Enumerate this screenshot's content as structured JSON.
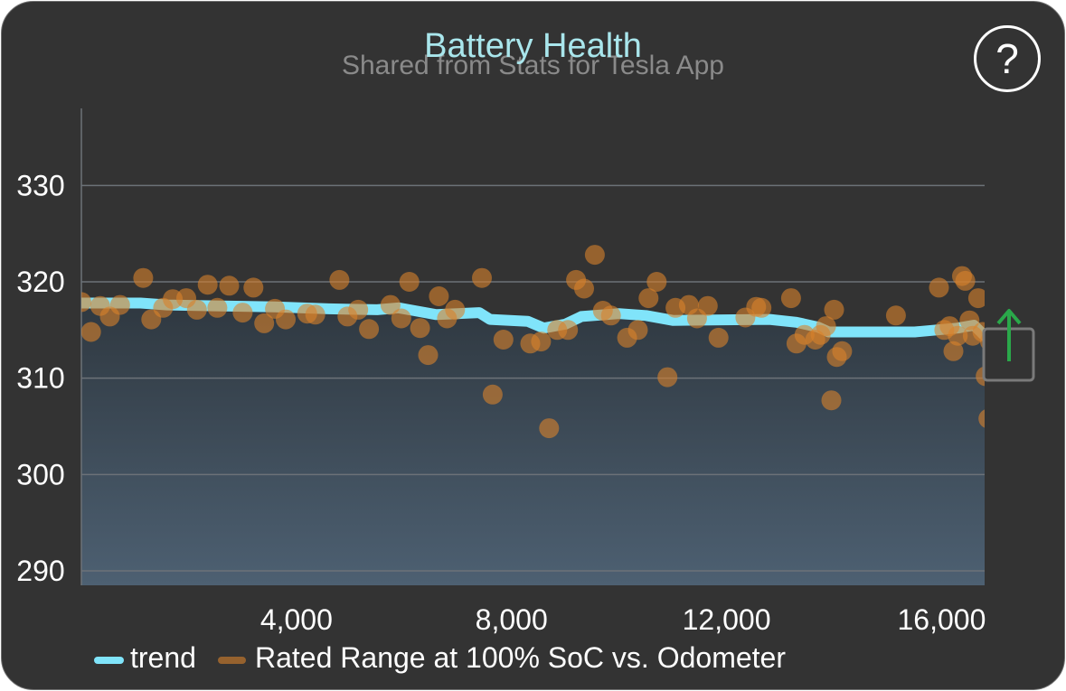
{
  "title": "Battery Health",
  "subtitle": "Shared from Stats for Tesla App",
  "help_label": "?",
  "colors": {
    "background": "#333333",
    "trend": "#80e4fa",
    "points": "#d9822b",
    "area_top": "#2f3840",
    "area_bottom": "#4d6072",
    "grid": "#6c7278",
    "share_icon": "#2aa84a"
  },
  "icons": {
    "help": "question-mark-icon",
    "share": "share-icon"
  },
  "chart_data": {
    "type": "scatter",
    "xlim": [
      0,
      16800
    ],
    "ylim": [
      288.5,
      338
    ],
    "x_ticks": [
      4000,
      8000,
      12000,
      16000
    ],
    "x_tick_labels": [
      "4,000",
      "8,000",
      "12,000",
      "16,000"
    ],
    "y_ticks": [
      290,
      300,
      310,
      320,
      330
    ],
    "y_tick_labels": [
      "290",
      "300",
      "310",
      "320",
      "330"
    ],
    "grid": "horizontal",
    "legend_position": "bottom-left",
    "series": [
      {
        "name": "trend",
        "type": "line",
        "points": [
          [
            0,
            317.8
          ],
          [
            1100,
            317.8
          ],
          [
            1600,
            317.6
          ],
          [
            2600,
            317.5
          ],
          [
            3600,
            317.4
          ],
          [
            4600,
            317.2
          ],
          [
            5500,
            317.1
          ],
          [
            5900,
            317.3
          ],
          [
            6200,
            317.0
          ],
          [
            6600,
            316.6
          ],
          [
            7400,
            316.8
          ],
          [
            7600,
            316.1
          ],
          [
            8300,
            315.9
          ],
          [
            8600,
            315.2
          ],
          [
            9000,
            315.6
          ],
          [
            9300,
            316.4
          ],
          [
            10000,
            316.7
          ],
          [
            10500,
            316.5
          ],
          [
            11000,
            316.0
          ],
          [
            12800,
            316.1
          ],
          [
            13300,
            315.8
          ],
          [
            13700,
            315.3
          ],
          [
            13900,
            314.8
          ],
          [
            15500,
            314.8
          ],
          [
            16300,
            315.2
          ],
          [
            16600,
            315.5
          ],
          [
            16800,
            314.4
          ]
        ]
      },
      {
        "name": "Rated Range at 100% SoC vs. Odometer",
        "type": "scatter",
        "points": [
          [
            0,
            317.9
          ],
          [
            180,
            314.8
          ],
          [
            350,
            317.5
          ],
          [
            530,
            316.4
          ],
          [
            720,
            317.6
          ],
          [
            1150,
            320.4
          ],
          [
            1300,
            316.1
          ],
          [
            1520,
            317.3
          ],
          [
            1700,
            318.2
          ],
          [
            1950,
            318.3
          ],
          [
            2150,
            317.1
          ],
          [
            2350,
            319.7
          ],
          [
            2530,
            317.3
          ],
          [
            2750,
            319.6
          ],
          [
            3000,
            316.8
          ],
          [
            3200,
            319.4
          ],
          [
            3400,
            315.7
          ],
          [
            3600,
            317.2
          ],
          [
            3800,
            316.1
          ],
          [
            4200,
            316.7
          ],
          [
            4350,
            316.6
          ],
          [
            4800,
            320.2
          ],
          [
            4950,
            316.4
          ],
          [
            5150,
            317.1
          ],
          [
            5350,
            315.1
          ],
          [
            5750,
            317.6
          ],
          [
            5950,
            316.2
          ],
          [
            6100,
            320.0
          ],
          [
            6300,
            315.2
          ],
          [
            6450,
            312.4
          ],
          [
            6650,
            318.5
          ],
          [
            6800,
            316.2
          ],
          [
            6950,
            317.1
          ],
          [
            7450,
            320.4
          ],
          [
            7650,
            308.3
          ],
          [
            7850,
            314.0
          ],
          [
            8350,
            313.6
          ],
          [
            8550,
            313.8
          ],
          [
            8700,
            304.8
          ],
          [
            8850,
            315.0
          ],
          [
            9050,
            315.0
          ],
          [
            9200,
            320.2
          ],
          [
            9350,
            319.3
          ],
          [
            9550,
            322.8
          ],
          [
            9700,
            317.0
          ],
          [
            9850,
            316.5
          ],
          [
            10150,
            314.2
          ],
          [
            10350,
            315.0
          ],
          [
            10550,
            318.3
          ],
          [
            10700,
            320.0
          ],
          [
            10900,
            310.1
          ],
          [
            11050,
            317.3
          ],
          [
            11300,
            317.6
          ],
          [
            11450,
            316.2
          ],
          [
            11650,
            317.5
          ],
          [
            11850,
            314.2
          ],
          [
            12350,
            316.3
          ],
          [
            12550,
            317.4
          ],
          [
            12650,
            317.3
          ],
          [
            13200,
            318.3
          ],
          [
            13300,
            313.6
          ],
          [
            13450,
            314.5
          ],
          [
            13650,
            314.0
          ],
          [
            13750,
            314.5
          ],
          [
            13850,
            315.4
          ],
          [
            13950,
            307.7
          ],
          [
            14000,
            317.1
          ],
          [
            14050,
            312.2
          ],
          [
            14150,
            312.8
          ],
          [
            15150,
            316.5
          ],
          [
            15950,
            319.4
          ],
          [
            16050,
            315.0
          ],
          [
            16150,
            315.4
          ],
          [
            16220,
            312.8
          ],
          [
            16300,
            314.4
          ],
          [
            16380,
            320.6
          ],
          [
            16440,
            320.1
          ],
          [
            16520,
            316.0
          ],
          [
            16580,
            314.4
          ],
          [
            16680,
            318.3
          ],
          [
            16760,
            314.8
          ],
          [
            16820,
            310.2
          ],
          [
            16870,
            305.8
          ],
          [
            16900,
            313.8
          ]
        ]
      }
    ]
  }
}
